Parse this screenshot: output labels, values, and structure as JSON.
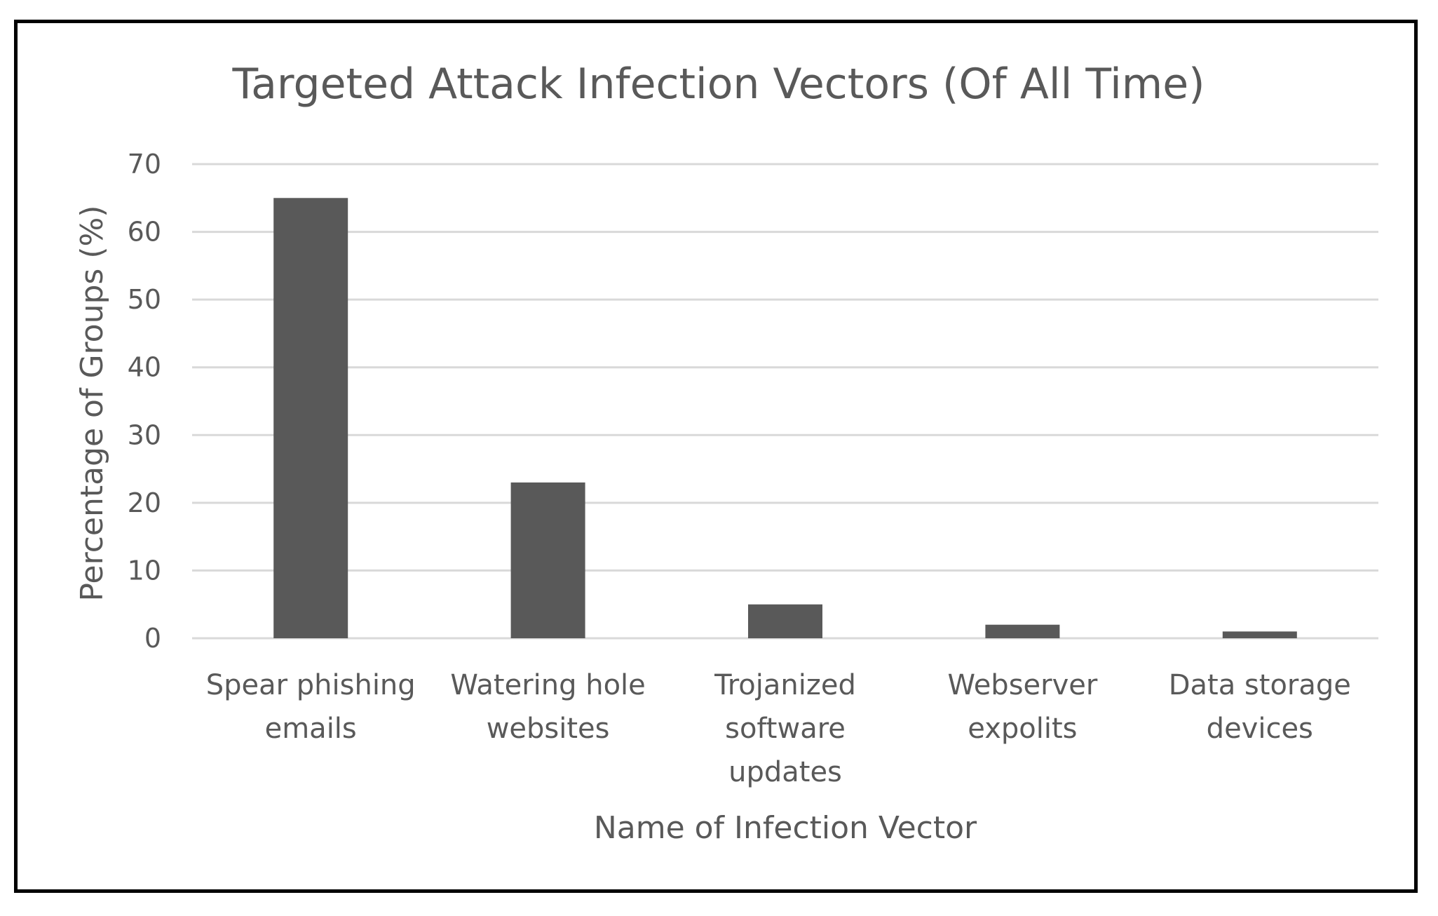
{
  "chart_data": {
    "type": "bar",
    "title": "Targeted Attack Infection Vectors (Of All Time)",
    "xlabel": "Name of Infection Vector",
    "ylabel": "Percentage of Groups (%)",
    "ylim": [
      0,
      70
    ],
    "yticks": [
      0,
      10,
      20,
      30,
      40,
      50,
      60,
      70
    ],
    "categories": [
      [
        "Spear phishing",
        "emails"
      ],
      [
        "Watering hole",
        "websites"
      ],
      [
        "Trojanized",
        "software",
        "updates"
      ],
      [
        "Webserver",
        "expolits"
      ],
      [
        "Data storage",
        "devices"
      ]
    ],
    "values": [
      65,
      23,
      5,
      2,
      1
    ],
    "grid": true,
    "legend": "none",
    "bar_color": "#595959"
  }
}
